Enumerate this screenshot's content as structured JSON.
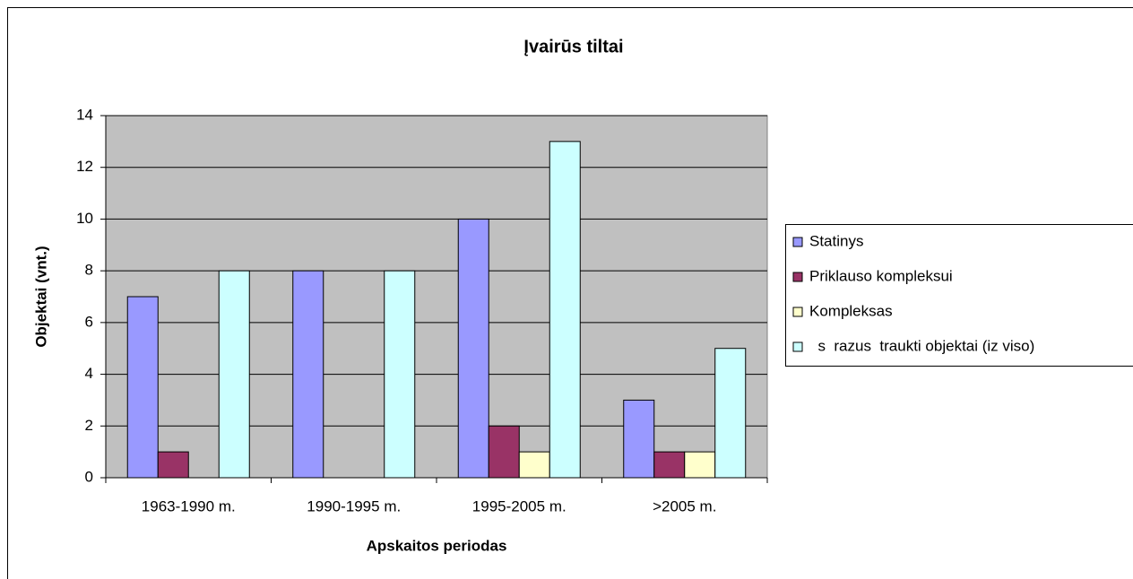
{
  "chart_data": {
    "type": "bar",
    "title": "Įvairūs tiltai",
    "x_label": "Apskaitos periodas",
    "y_label": "Objektai (vnt.)",
    "categories": [
      "1963-1990 m.",
      "1990-1995 m.",
      "1995-2005 m.",
      ">2005 m."
    ],
    "series": [
      {
        "name": "Statinys",
        "color": "#9999ff",
        "values": [
          7,
          8,
          10,
          3
        ]
      },
      {
        "name": "Priklauso kompleksui",
        "color": "#993366",
        "values": [
          1,
          0,
          2,
          1
        ]
      },
      {
        "name": "Kompleksas",
        "color": "#ffffcc",
        "values": [
          0,
          0,
          1,
          1
        ]
      },
      {
        "name": "  s  razus  traukti objektai (iz viso)",
        "color": "#ccffff",
        "values": [
          8,
          8,
          13,
          5
        ]
      }
    ],
    "ylim": [
      0,
      14
    ],
    "yticks": [
      0,
      2,
      4,
      6,
      8,
      10,
      12,
      14
    ],
    "grid": true,
    "plot_background": "#c0c0c0",
    "legend": "right"
  }
}
